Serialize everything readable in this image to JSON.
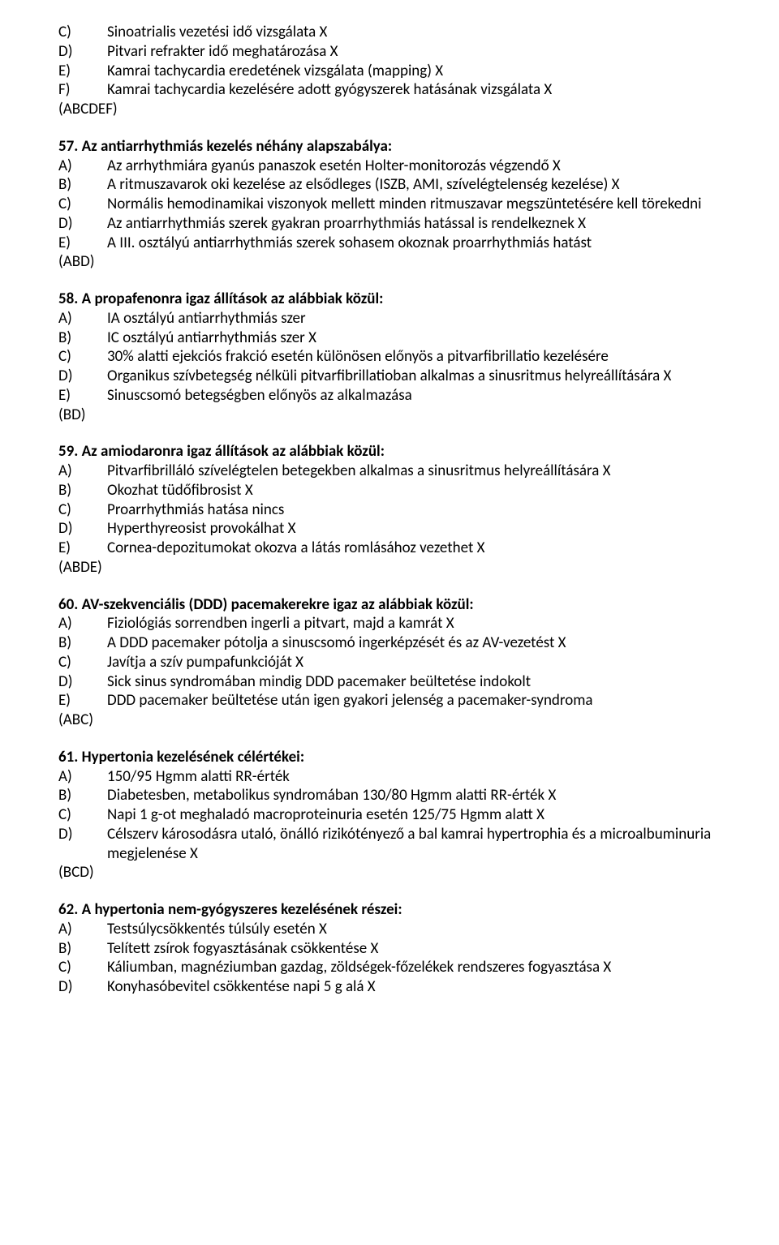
{
  "blocks": [
    {
      "pre_options": [
        {
          "letter": "C)",
          "text": "Sinoatrialis vezetési idő vizsgálata X"
        },
        {
          "letter": "D)",
          "text": "Pitvari refrakter idő meghatározása X"
        },
        {
          "letter": "E)",
          "text": "Kamrai tachycardia eredetének vizsgálata (mapping) X"
        },
        {
          "letter": "F)",
          "text": "Kamrai tachycardia kezelésére adott gyógyszerek hatásának vizsgálata X"
        }
      ],
      "answer": "(ABCDEF)"
    },
    {
      "title": "57. Az antiarrhythmiás kezelés néhány alapszabálya:",
      "options": [
        {
          "letter": "A)",
          "text": "Az arrhythmiára gyanús panaszok esetén Holter-monitorozás végzendő X"
        },
        {
          "letter": "B)",
          "text": "A ritmuszavarok oki kezelése az elsődleges (ISZB, AMI, szívelégtelenség kezelése) X"
        },
        {
          "letter": "C)",
          "text": "Normális hemodinamikai viszonyok mellett minden ritmuszavar megszüntetésére kell törekedni"
        },
        {
          "letter": "D)",
          "text": "Az antiarrhythmiás szerek gyakran proarrhythmiás hatással is rendelkeznek X"
        },
        {
          "letter": "E)",
          "text": "A III. osztályú antiarrhythmiás szerek sohasem okoznak proarrhythmiás hatást"
        }
      ],
      "answer": "(ABD)"
    },
    {
      "title": "58. A propafenonra igaz állítások az alábbiak közül:",
      "options": [
        {
          "letter": "A)",
          "text": "IA osztályú antiarrhythmiás szer"
        },
        {
          "letter": "B)",
          "text": "IC osztályú antiarrhythmiás szer X"
        },
        {
          "letter": "C)",
          "text": "30% alatti ejekciós frakció esetén különösen előnyös a pitvarfibrillatio kezelésére"
        },
        {
          "letter": "D)",
          "text": "Organikus szívbetegség nélküli pitvarfibrillatioban alkalmas a sinusritmus helyreállítására X"
        },
        {
          "letter": "E)",
          "text": "Sinuscsomó betegségben előnyös az alkalmazása"
        }
      ],
      "answer": "(BD)"
    },
    {
      "title": "59. Az amiodaronra igaz állítások az alábbiak közül:",
      "options": [
        {
          "letter": "A)",
          "text": "Pitvarfibrilláló szívelégtelen betegekben alkalmas a sinusritmus helyreállítására X"
        },
        {
          "letter": "B)",
          "text": "Okozhat tüdőfibrosist X"
        },
        {
          "letter": "C)",
          "text": "Proarrhythmiás hatása nincs"
        },
        {
          "letter": "D)",
          "text": "Hyperthyreosist provokálhat X"
        },
        {
          "letter": "E)",
          "text": "Cornea-depozitumokat okozva a látás romlásához vezethet X"
        }
      ],
      "answer": "(ABDE)"
    },
    {
      "title": "60. AV-szekvenciális (DDD) pacemakerekre igaz az alábbiak közül:",
      "options": [
        {
          "letter": "A)",
          "text": "Fiziológiás sorrendben ingerli a pitvart, majd a kamrát X"
        },
        {
          "letter": "B)",
          "text": "A DDD pacemaker pótolja a sinuscsomó ingerképzését és az AV-vezetést X"
        },
        {
          "letter": "C)",
          "text": "Javítja a szív pumpafunkcióját X"
        },
        {
          "letter": "D)",
          "text": "Sick sinus syndromában mindig DDD pacemaker beültetése indokolt"
        },
        {
          "letter": "E)",
          "text": "DDD pacemaker beültetése után igen gyakori jelenség a pacemaker-syndroma"
        }
      ],
      "answer": "(ABC)"
    },
    {
      "title": "61. Hypertonia kezelésének célértékei:",
      "options": [
        {
          "letter": "A)",
          "text": "150/95 Hgmm alatti RR-érték"
        },
        {
          "letter": "B)",
          "text": "Diabetesben, metabolikus syndromában 130/80 Hgmm alatti RR-érték X"
        },
        {
          "letter": "C)",
          "text": "Napi 1 g-ot meghaladó macroproteinuria esetén 125/75 Hgmm alatt X"
        },
        {
          "letter": "D)",
          "text": "Célszerv károsodásra utaló, önálló rizikótényező a bal kamrai hypertrophia és a microalbuminuria megjelenése X"
        }
      ],
      "answer": "(BCD)"
    },
    {
      "title": "62. A hypertonia nem-gyógyszeres kezelésének részei:",
      "options": [
        {
          "letter": "A)",
          "text": "Testsúlycsökkentés túlsúly esetén X"
        },
        {
          "letter": "B)",
          "text": "Telített zsírok fogyasztásának csökkentése X"
        },
        {
          "letter": "C)",
          "text": "Káliumban, magnéziumban gazdag, zöldségek-főzelékek rendszeres fogyasztása X"
        },
        {
          "letter": "D)",
          "text": "Konyhasóbevitel csökkentése napi 5 g alá X"
        }
      ]
    }
  ]
}
